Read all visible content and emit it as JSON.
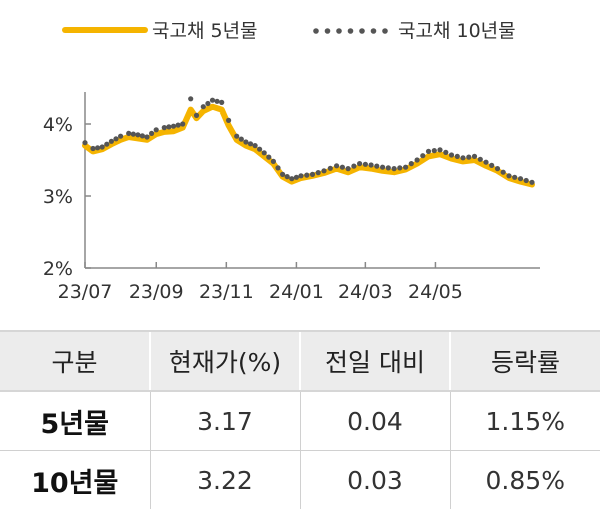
{
  "colors": {
    "series_5y": "#f5b400",
    "series_10y": "#555555",
    "axis": "#888888",
    "header_bg": "#ececec"
  },
  "chart_data": {
    "type": "line",
    "title": "",
    "xlabel": "",
    "ylabel": "",
    "ylim": [
      2,
      4.5
    ],
    "xlim": [
      "2023-07-01",
      "2024-07-31"
    ],
    "y_ticks": [
      {
        "value": 4,
        "label": "4%"
      },
      {
        "value": 3,
        "label": "3%"
      },
      {
        "value": 2,
        "label": "2%"
      }
    ],
    "x_ticks": [
      {
        "date": "2023-07-01",
        "label": "23/07"
      },
      {
        "date": "2023-09-01",
        "label": "23/09"
      },
      {
        "date": "2023-11-01",
        "label": "23/11"
      },
      {
        "date": "2024-01-01",
        "label": "24/01"
      },
      {
        "date": "2024-03-01",
        "label": "24/03"
      },
      {
        "date": "2024-05-01",
        "label": "24/05"
      }
    ],
    "legend_position": "top",
    "grid": false,
    "series": [
      {
        "name": "국고채 5년물",
        "style": "solid",
        "x": [
          "2023-07-01",
          "2023-07-08",
          "2023-07-16",
          "2023-07-24",
          "2023-08-01",
          "2023-08-08",
          "2023-08-16",
          "2023-08-24",
          "2023-09-01",
          "2023-09-08",
          "2023-09-16",
          "2023-09-24",
          "2023-10-01",
          "2023-10-06",
          "2023-10-12",
          "2023-10-20",
          "2023-10-28",
          "2023-11-03",
          "2023-11-10",
          "2023-11-18",
          "2023-11-26",
          "2023-12-04",
          "2023-12-12",
          "2023-12-20",
          "2023-12-28",
          "2024-01-05",
          "2024-01-15",
          "2024-01-25",
          "2024-02-05",
          "2024-02-15",
          "2024-02-25",
          "2024-03-06",
          "2024-03-16",
          "2024-03-26",
          "2024-04-05",
          "2024-04-15",
          "2024-04-25",
          "2024-05-05",
          "2024-05-15",
          "2024-05-25",
          "2024-06-04",
          "2024-06-14",
          "2024-06-24",
          "2024-07-04",
          "2024-07-14",
          "2024-07-24"
        ],
        "values": [
          3.7,
          3.62,
          3.65,
          3.72,
          3.78,
          3.82,
          3.8,
          3.78,
          3.86,
          3.89,
          3.9,
          3.95,
          4.2,
          4.08,
          4.18,
          4.24,
          4.2,
          3.98,
          3.78,
          3.7,
          3.65,
          3.55,
          3.45,
          3.27,
          3.2,
          3.25,
          3.28,
          3.32,
          3.38,
          3.33,
          3.4,
          3.38,
          3.35,
          3.33,
          3.37,
          3.45,
          3.55,
          3.58,
          3.52,
          3.48,
          3.5,
          3.42,
          3.35,
          3.25,
          3.2,
          3.16
        ]
      },
      {
        "name": "국고채 10년물",
        "style": "dotted",
        "x": [
          "2023-07-01",
          "2023-07-08",
          "2023-07-16",
          "2023-07-24",
          "2023-08-01",
          "2023-08-08",
          "2023-08-16",
          "2023-08-24",
          "2023-09-01",
          "2023-09-08",
          "2023-09-16",
          "2023-09-24",
          "2023-10-01",
          "2023-10-06",
          "2023-10-12",
          "2023-10-20",
          "2023-10-28",
          "2023-11-03",
          "2023-11-10",
          "2023-11-18",
          "2023-11-26",
          "2023-12-04",
          "2023-12-12",
          "2023-12-20",
          "2023-12-28",
          "2024-01-05",
          "2024-01-15",
          "2024-01-25",
          "2024-02-05",
          "2024-02-15",
          "2024-02-25",
          "2024-03-06",
          "2024-03-16",
          "2024-03-26",
          "2024-04-05",
          "2024-04-15",
          "2024-04-25",
          "2024-05-05",
          "2024-05-15",
          "2024-05-25",
          "2024-06-04",
          "2024-06-14",
          "2024-06-24",
          "2024-07-04",
          "2024-07-14",
          "2024-07-24"
        ],
        "values": [
          3.74,
          3.66,
          3.68,
          3.76,
          3.83,
          3.87,
          3.85,
          3.82,
          3.92,
          3.95,
          3.97,
          4.0,
          4.35,
          4.12,
          4.24,
          4.33,
          4.3,
          4.05,
          3.83,
          3.75,
          3.7,
          3.6,
          3.48,
          3.3,
          3.24,
          3.28,
          3.3,
          3.35,
          3.42,
          3.38,
          3.45,
          3.43,
          3.4,
          3.38,
          3.4,
          3.5,
          3.62,
          3.64,
          3.57,
          3.53,
          3.55,
          3.47,
          3.38,
          3.28,
          3.24,
          3.19
        ]
      }
    ]
  },
  "table": {
    "headers": [
      "구분",
      "현재가(%)",
      "전일 대비",
      "등락률"
    ],
    "rows": [
      [
        "5년물",
        "3.17",
        "0.04",
        "1.15%"
      ],
      [
        "10년물",
        "3.22",
        "0.03",
        "0.85%"
      ]
    ]
  }
}
